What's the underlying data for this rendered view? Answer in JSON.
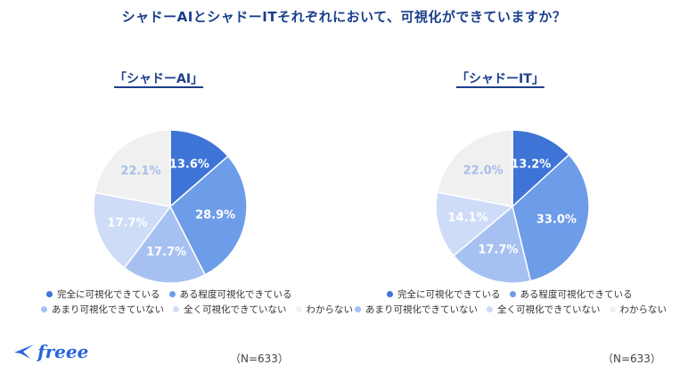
{
  "title": "シャドーAIとシャドーITそれぞれにおいて、可視化ができていますか？",
  "legend_items": [
    {
      "label": "完全に可視化できている",
      "color": "#3e74d6"
    },
    {
      "label": "ある程度可視化できている",
      "color": "#6d9ce8"
    },
    {
      "label": "あまり可視化できていない",
      "color": "#a6c1f1"
    },
    {
      "label": "全く可視化できていない",
      "color": "#cfdcf7"
    },
    {
      "label": "わからない",
      "color": "#f0f0f0"
    }
  ],
  "sample_size": "（N=633）",
  "logo": "freee",
  "chart_data": [
    {
      "type": "pie",
      "title": "「シャドーAI」",
      "labels": [
        "完全に可視化できている",
        "ある程度可視化できている",
        "あまり可視化できていない",
        "全く可視化できていない",
        "わからない"
      ],
      "values": [
        13.6,
        28.9,
        17.7,
        17.7,
        22.1
      ],
      "value_labels": [
        "13.6%",
        "28.9%",
        "17.7%",
        "17.7%",
        "22.1%"
      ],
      "colors": [
        "#3e74d6",
        "#6d9ce8",
        "#a6c1f1",
        "#cfdcf7",
        "#f0f0f0"
      ],
      "label_colors": [
        "#ffffff",
        "#ffffff",
        "#ffffff",
        "#ffffff",
        "#a7bfe9"
      ]
    },
    {
      "type": "pie",
      "title": "「シャドーIT」",
      "labels": [
        "完全に可視化できている",
        "ある程度可視化できている",
        "あまり可視化できていない",
        "全く可視化できていない",
        "わからない"
      ],
      "values": [
        13.2,
        33.0,
        17.7,
        14.1,
        22.0
      ],
      "value_labels": [
        "13.2%",
        "33.0%",
        "17.7%",
        "14.1%",
        "22.0%"
      ],
      "colors": [
        "#3e74d6",
        "#6d9ce8",
        "#a6c1f1",
        "#cfdcf7",
        "#f0f0f0"
      ],
      "label_colors": [
        "#ffffff",
        "#ffffff",
        "#ffffff",
        "#ffffff",
        "#a7bfe9"
      ]
    }
  ]
}
